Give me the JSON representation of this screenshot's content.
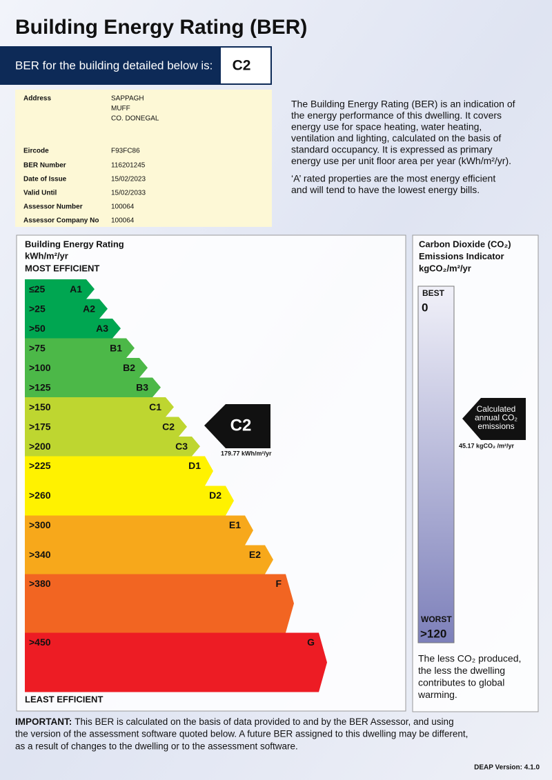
{
  "header": {
    "title": "Building Energy Rating (BER)",
    "banner_label": "BER for the building detailed below is:",
    "banner_rating": "C2"
  },
  "details": {
    "address_label": "Address",
    "address_lines": [
      "SAPPAGH",
      "MUFF",
      "CO. DONEGAL"
    ],
    "rows": [
      [
        "Eircode",
        "F93FC86"
      ],
      [
        "BER Number",
        "116201245"
      ],
      [
        "Date of Issue",
        "15/02/2023"
      ],
      [
        "Valid Until",
        "15/02/2033"
      ],
      [
        "Assessor Number",
        "100064"
      ],
      [
        "Assessor Company No",
        "100064"
      ]
    ]
  },
  "description": {
    "paragraphs": [
      [
        "The Building Energy Rating (BER) is an indication of",
        "the energy performance of this dwelling.  It covers",
        "energy use for space heating, water heating,",
        "ventilation and lighting, calculated on the basis of",
        "standard occupancy. It is expressed as primary",
        "energy use per unit floor area per year (kWh/m²/yr)."
      ],
      [
        "‘A’ rated properties are the most energy efficient",
        "and will tend to have the lowest energy bills."
      ]
    ]
  },
  "scale": {
    "title_lines": [
      "Building Energy Rating",
      "kWh/m²/yr"
    ],
    "top_label": "MOST EFFICIENT",
    "bottom_label": "LEAST EFFICIENT",
    "bands": [
      {
        "range": "≤25",
        "grade": "A1",
        "color": "#00a651"
      },
      {
        "range": ">25",
        "grade": "A2",
        "color": "#00a651"
      },
      {
        "range": ">50",
        "grade": "A3",
        "color": "#00a651"
      },
      {
        "range": ">75",
        "grade": "B1",
        "color": "#4cb848"
      },
      {
        "range": ">100",
        "grade": "B2",
        "color": "#4cb848"
      },
      {
        "range": ">125",
        "grade": "B3",
        "color": "#4cb848"
      },
      {
        "range": ">150",
        "grade": "C1",
        "color": "#bed630"
      },
      {
        "range": ">175",
        "grade": "C2",
        "color": "#bed630"
      },
      {
        "range": ">200",
        "grade": "C3",
        "color": "#bed630"
      },
      {
        "range": ">225",
        "grade": "D1",
        "color": "#fff200"
      },
      {
        "range": ">260",
        "grade": "D2",
        "color": "#fff200"
      },
      {
        "range": ">300",
        "grade": "E1",
        "color": "#f7a81b"
      },
      {
        "range": ">340",
        "grade": "E2",
        "color": "#f7a81b"
      },
      {
        "range": ">380",
        "grade": "F",
        "color": "#f26522"
      },
      {
        "range": ">450",
        "grade": "G",
        "color": "#ed1c24"
      }
    ],
    "indicator": {
      "rating": "C2",
      "value": "179.77 kWh/m²/yr"
    }
  },
  "co2": {
    "title_lines": [
      "Carbon Dioxide (CO₂)",
      "Emissions Indicator",
      "kgCO₂/m²/yr"
    ],
    "best_label": "BEST",
    "best_value": "0",
    "worst_label": "WORST",
    "worst_value": ">120",
    "indicator_lines": [
      "Calculated",
      "annual CO₂",
      "emissions"
    ],
    "indicator_value": "45.17 kgCO₂ /m²/yr",
    "note_lines": [
      "The less CO₂ produced,",
      "the less the dwelling",
      "contributes to global",
      "warming."
    ]
  },
  "footer": {
    "important_label": "IMPORTANT:",
    "important_lines": [
      "This BER is calculated on the basis of data provided to and by the BER Assessor, and using",
      "the version of the assessment software quoted below.  A future BER assigned to this dwelling may be different,",
      "as a result of changes to the dwelling or to the assessment software."
    ],
    "version": "DEAP Version: 4.1.0"
  }
}
